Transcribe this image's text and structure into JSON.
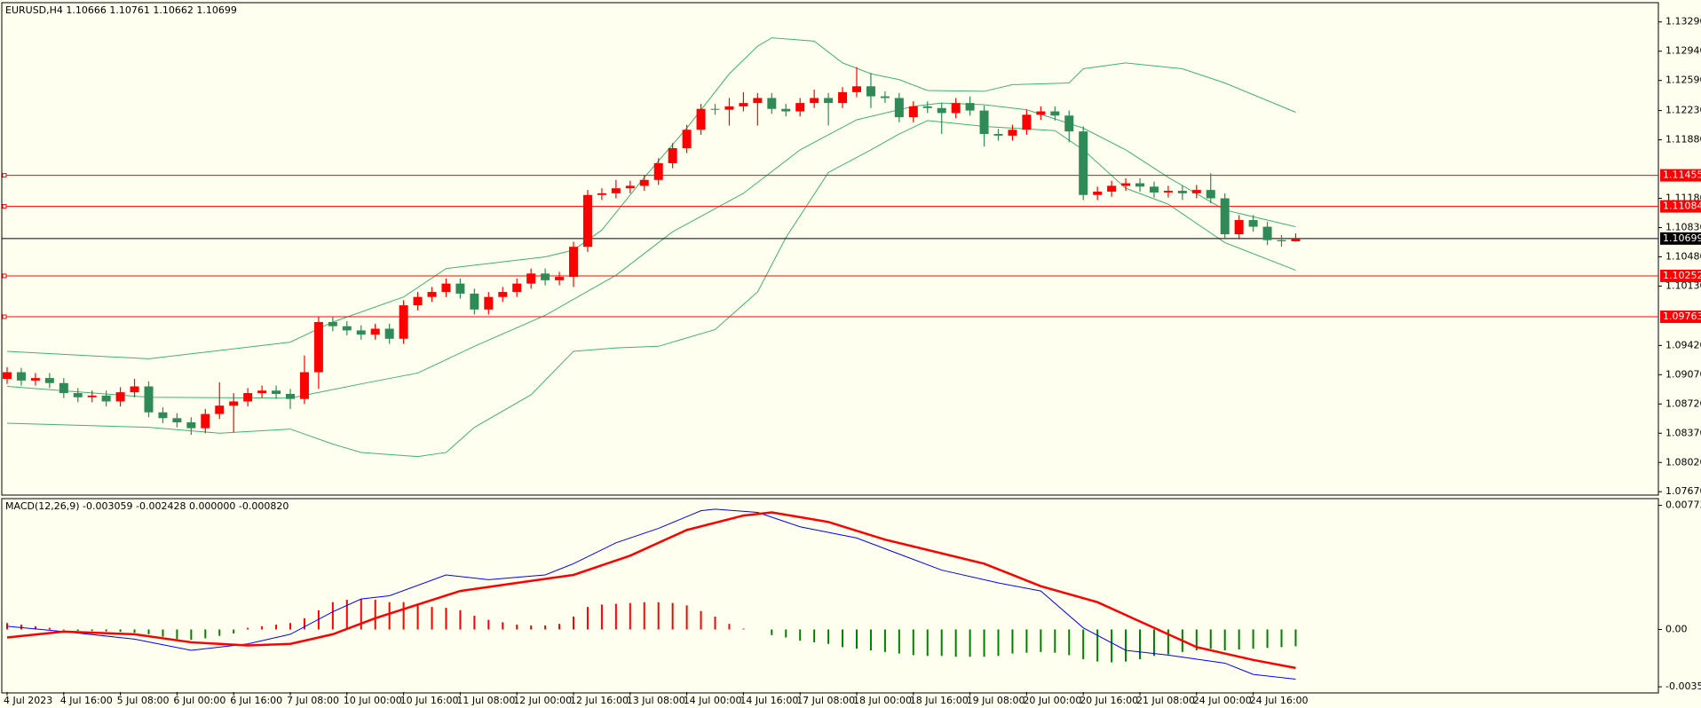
{
  "chart_data": [
    {
      "type": "candlestick",
      "title": "EURUSD,H4  1.10666 1.10761 1.10662 1.10699",
      "categories": [
        "4 Jul 2023",
        null,
        null,
        null,
        "4 Jul 16:00",
        null,
        null,
        null,
        "5 Jul 08:00",
        null,
        null,
        null,
        "6 Jul 00:00",
        null,
        null,
        null,
        "6 Jul 16:00",
        null,
        null,
        null,
        "7 Jul 08:00",
        null,
        null,
        null,
        "10 Jul 00:00",
        null,
        null,
        null,
        "10 Jul 16:00",
        null,
        null,
        null,
        "11 Jul 08:00",
        null,
        null,
        null,
        "12 Jul 00:00",
        null,
        null,
        null,
        "12 Jul 16:00",
        null,
        null,
        null,
        "13 Jul 08:00",
        null,
        null,
        null,
        "14 Jul 00:00",
        null,
        null,
        null,
        "14 Jul 16:00",
        null,
        null,
        null,
        "17 Jul 08:00",
        null,
        null,
        null,
        "18 Jul 00:00",
        null,
        null,
        null,
        "18 Jul 16:00",
        null,
        null,
        null,
        "19 Jul 08:00",
        null,
        null,
        null,
        "20 Jul 00:00",
        null,
        null,
        null,
        "20 Jul 16:00",
        null,
        null,
        null,
        "21 Jul 08:00",
        null,
        null,
        null,
        "24 Jul 00:00",
        null,
        null,
        null,
        "24 Jul 16:00",
        null,
        null,
        null
      ],
      "open": [
        1.0902,
        1.091,
        1.09,
        1.0903,
        1.0897,
        1.0885,
        1.088,
        1.0882,
        1.0875,
        1.0886,
        1.0893,
        1.0862,
        1.0855,
        1.085,
        1.0843,
        1.086,
        1.087,
        1.0875,
        1.0885,
        1.0888,
        1.0884,
        1.0878,
        1.091,
        1.097,
        1.0965,
        1.096,
        1.0955,
        1.0962,
        1.095,
        1.099,
        1.1,
        1.1006,
        1.1016,
        1.1004,
        1.0985,
        1.1,
        1.1006,
        1.1016,
        1.1028,
        1.102,
        1.1024,
        1.106,
        1.1122,
        1.1124,
        1.113,
        1.1133,
        1.114,
        1.116,
        1.1178,
        1.12,
        1.1225,
        1.1224,
        1.1228,
        1.1232,
        1.1238,
        1.1225,
        1.1222,
        1.1232,
        1.1238,
        1.1232,
        1.1245,
        1.1252,
        1.124,
        1.1238,
        1.1215,
        1.1228,
        1.1226,
        1.122,
        1.1232,
        1.1223,
        1.1195,
        1.1193,
        1.12,
        1.1218,
        1.1222,
        1.1217,
        1.1198,
        1.1122,
        1.1126,
        1.1133,
        1.1136,
        1.1132,
        1.1125,
        1.1127,
        1.1124,
        1.1128,
        1.1118,
        1.1075,
        1.1092,
        1.1084,
        1.1068,
        1.10666
      ],
      "high": [
        1.0916,
        1.0915,
        1.0909,
        1.0909,
        1.0903,
        1.0891,
        1.0888,
        1.0888,
        1.0892,
        1.0902,
        1.0899,
        1.0868,
        1.0861,
        1.0856,
        1.0866,
        1.0898,
        1.0885,
        1.0891,
        1.0894,
        1.0894,
        1.089,
        1.093,
        1.0976,
        1.0976,
        1.0971,
        1.0966,
        1.0968,
        1.0968,
        1.0996,
        1.1006,
        1.1012,
        1.1022,
        1.1022,
        1.101,
        1.1006,
        1.1012,
        1.1022,
        1.1034,
        1.1034,
        1.103,
        1.1066,
        1.1128,
        1.113,
        1.114,
        1.1139,
        1.1146,
        1.1166,
        1.1184,
        1.1206,
        1.1231,
        1.1231,
        1.1238,
        1.1245,
        1.1244,
        1.1244,
        1.1231,
        1.1238,
        1.1248,
        1.1244,
        1.1251,
        1.1275,
        1.1268,
        1.1246,
        1.1244,
        1.1234,
        1.1234,
        1.1232,
        1.1238,
        1.124,
        1.1229,
        1.1201,
        1.1206,
        1.1224,
        1.1228,
        1.1228,
        1.1223,
        1.1204,
        1.1132,
        1.1139,
        1.1142,
        1.1142,
        1.1138,
        1.1133,
        1.1133,
        1.1134,
        1.1148,
        1.1124,
        1.1098,
        1.1098,
        1.109,
        1.1074,
        1.10761
      ],
      "low": [
        1.0896,
        1.0894,
        1.0894,
        1.0891,
        1.0879,
        1.0874,
        1.0874,
        1.0869,
        1.0869,
        1.088,
        1.0856,
        1.0849,
        1.0844,
        1.0835,
        1.0837,
        1.0854,
        1.0838,
        1.0869,
        1.0879,
        1.0878,
        1.0866,
        1.0872,
        1.089,
        1.0959,
        1.0954,
        1.0949,
        1.0949,
        1.0944,
        1.0944,
        1.0984,
        1.0994,
        1.1,
        1.0998,
        1.0979,
        1.0979,
        1.0994,
        1.1,
        1.101,
        1.1014,
        1.1014,
        1.1012,
        1.1054,
        1.1116,
        1.1118,
        1.1124,
        1.1127,
        1.1134,
        1.1154,
        1.1172,
        1.1194,
        1.1218,
        1.1205,
        1.1222,
        1.1205,
        1.1219,
        1.1216,
        1.1216,
        1.1226,
        1.1205,
        1.1226,
        1.1239,
        1.1226,
        1.1232,
        1.1209,
        1.1209,
        1.122,
        1.1195,
        1.1214,
        1.1217,
        1.118,
        1.1187,
        1.1187,
        1.1194,
        1.1212,
        1.1211,
        1.1185,
        1.1116,
        1.1116,
        1.112,
        1.1127,
        1.1126,
        1.1119,
        1.1119,
        1.1116,
        1.1118,
        1.1112,
        1.1069,
        1.1069,
        1.1078,
        1.1062,
        1.106,
        1.10662
      ],
      "close": [
        1.091,
        1.09,
        1.0903,
        1.0897,
        1.0885,
        1.088,
        1.0882,
        1.0875,
        1.0886,
        1.0893,
        1.0862,
        1.0855,
        1.085,
        1.0843,
        1.086,
        1.087,
        1.0875,
        1.0885,
        1.0888,
        1.0884,
        1.0878,
        1.091,
        1.097,
        1.0965,
        1.096,
        1.0955,
        1.0962,
        1.095,
        1.099,
        1.1,
        1.1006,
        1.1016,
        1.1004,
        1.0985,
        1.1,
        1.1006,
        1.1016,
        1.1028,
        1.102,
        1.1024,
        1.106,
        1.1122,
        1.1124,
        1.113,
        1.1133,
        1.114,
        1.116,
        1.1178,
        1.12,
        1.1225,
        1.1224,
        1.1228,
        1.1232,
        1.1238,
        1.1225,
        1.1222,
        1.1232,
        1.1238,
        1.1232,
        1.1245,
        1.1252,
        1.124,
        1.1238,
        1.1215,
        1.1228,
        1.1226,
        1.122,
        1.1232,
        1.1223,
        1.1195,
        1.1193,
        1.12,
        1.1218,
        1.1222,
        1.1217,
        1.1198,
        1.1122,
        1.1126,
        1.1133,
        1.1136,
        1.1132,
        1.1125,
        1.1127,
        1.1124,
        1.1128,
        1.1118,
        1.1075,
        1.1092,
        1.1084,
        1.1068,
        1.10666,
        1.10699
      ],
      "up_color": "#ff0000",
      "down_color": "#2e8b57",
      "bands": [
        {
          "color": "#3cb371",
          "x": [
            0,
            10,
            20,
            23,
            28,
            31,
            38,
            40,
            42,
            45,
            48,
            51,
            53,
            54,
            57,
            59,
            61,
            63,
            65,
            69,
            71,
            75,
            76,
            79,
            83,
            86,
            91
          ],
          "values": [
            1.0935,
            1.0926,
            1.0946,
            1.097,
            1.1,
            1.1034,
            1.1048,
            1.1056,
            1.108,
            1.1143,
            1.1202,
            1.1267,
            1.13,
            1.131,
            1.1306,
            1.128,
            1.1267,
            1.126,
            1.1247,
            1.1246,
            1.1254,
            1.1256,
            1.1273,
            1.128,
            1.1273,
            1.1256,
            1.1221
          ]
        },
        {
          "color": "#3cb371",
          "x": [
            0,
            10,
            20,
            25,
            29,
            33,
            38,
            43,
            47,
            52,
            56,
            60,
            64,
            66,
            69,
            72,
            76,
            79,
            82,
            86,
            91
          ],
          "values": [
            1.0893,
            1.088,
            1.0879,
            1.0896,
            1.0909,
            1.0941,
            1.0978,
            1.1026,
            1.1078,
            1.1124,
            1.1176,
            1.1212,
            1.1228,
            1.1232,
            1.123,
            1.1224,
            1.1202,
            1.1176,
            1.1143,
            1.1104,
            1.1084
          ]
        },
        {
          "color": "#3cb371",
          "x": [
            0,
            10,
            15,
            20,
            23,
            25,
            29,
            31,
            33,
            37,
            40,
            43,
            46,
            50,
            53,
            55,
            58,
            61,
            63,
            65,
            69,
            74,
            76,
            79,
            82,
            86,
            91
          ],
          "values": [
            1.0849,
            1.0844,
            1.0837,
            1.0842,
            1.0824,
            1.0814,
            1.0809,
            1.0814,
            1.0844,
            1.0883,
            1.0935,
            1.0939,
            1.0941,
            1.0961,
            1.1006,
            1.1071,
            1.1149,
            1.1176,
            1.1195,
            1.1211,
            1.1204,
            1.1199,
            1.1176,
            1.113,
            1.1111,
            1.1065,
            1.1032
          ]
        }
      ],
      "levels": [
        {
          "value": 1.11455,
          "color": "#ff0000"
        },
        {
          "value": 1.11084,
          "color": "#ff0000"
        },
        {
          "value": 1.10252,
          "color": "#ff0000"
        },
        {
          "value": 1.09763,
          "color": "#ff0000"
        }
      ],
      "current": {
        "value": 1.10699,
        "color": "#000000"
      },
      "ylim": [
        1.0763,
        1.1351
      ],
      "yticks": [
        {
          "value": 1.0767,
          "label": "1.07670"
        },
        {
          "value": 1.0802,
          "label": "1.08020"
        },
        {
          "value": 1.0837,
          "label": "1.08370"
        },
        {
          "value": 1.0872,
          "label": "1.08720"
        },
        {
          "value": 1.0907,
          "label": "1.09070"
        },
        {
          "value": 1.0942,
          "label": "1.09420"
        },
        {
          "value": 1.1013,
          "label": "1.10130"
        },
        {
          "value": 1.1048,
          "label": "1.10480"
        },
        {
          "value": 1.1083,
          "label": "1.10830"
        },
        {
          "value": 1.1118,
          "label": "1.11180"
        },
        {
          "value": 1.1188,
          "label": "1.11880"
        },
        {
          "value": 1.1223,
          "label": "1.12230"
        },
        {
          "value": 1.1259,
          "label": "1.12590"
        },
        {
          "value": 1.1294,
          "label": "1.12940"
        },
        {
          "value": 1.1329,
          "label": "1.13290"
        }
      ]
    },
    {
      "type": "macd",
      "title": "MACD(12,26,9) -0.003059 -0.002428 0.000000 -0.000820",
      "histogram": {
        "up_color": "#ff0000",
        "down_color": "#008000",
        "values": [
          0.0004,
          0.0003,
          0.0002,
          0.0001,
          -5e-05,
          -8e-05,
          -0.0001,
          -0.00012,
          -0.00015,
          -0.0002,
          -0.0003,
          -0.00045,
          -0.0006,
          -0.00065,
          -0.00055,
          -0.0004,
          -0.00025,
          0.0001,
          0.0002,
          0.0003,
          0.0004,
          0.0007,
          0.0012,
          0.0017,
          0.00185,
          0.0019,
          0.00185,
          0.0017,
          0.0017,
          0.0015,
          0.0014,
          0.00135,
          0.0012,
          0.00085,
          0.0006,
          0.00045,
          0.0003,
          0.00025,
          0.00025,
          0.00035,
          0.0008,
          0.0014,
          0.00155,
          0.0016,
          0.00165,
          0.0017,
          0.0017,
          0.00165,
          0.0015,
          0.00115,
          0.0008,
          0.00035,
          5e-05,
          0,
          -0.00035,
          -0.0005,
          -0.0007,
          -0.0008,
          -0.0009,
          -0.0011,
          -0.0012,
          -0.0013,
          -0.0014,
          -0.0015,
          -0.0016,
          -0.00165,
          -0.00165,
          -0.0017,
          -0.0017,
          -0.0017,
          -0.00165,
          -0.0015,
          -0.00145,
          -0.0014,
          -0.00145,
          -0.0016,
          -0.00185,
          -0.002,
          -0.00205,
          -0.002,
          -0.00185,
          -0.00165,
          -0.00155,
          -0.0014,
          -0.0013,
          -0.0012,
          -0.0013,
          -0.00125,
          -0.0012,
          -0.00115,
          -0.0011,
          -0.00105
        ]
      },
      "series": [
        {
          "color": "#0000ff",
          "width": 1,
          "x": [
            0,
            4,
            9,
            13,
            17,
            20,
            23,
            25,
            27,
            31,
            34,
            38,
            40,
            43,
            46,
            49,
            50,
            53,
            56,
            60,
            63,
            66,
            70,
            73,
            76,
            79,
            82,
            86,
            88,
            91
          ],
          "values": [
            0.0002,
            -0.00013,
            -0.0006,
            -0.0013,
            -0.0009,
            -0.0003,
            0.0011,
            0.0019,
            0.0021,
            0.0034,
            0.0031,
            0.0034,
            0.0041,
            0.0054,
            0.0063,
            0.0074,
            0.0075,
            0.0073,
            0.0064,
            0.0057,
            0.0047,
            0.0037,
            0.0029,
            0.0024,
            0.0001,
            -0.0013,
            -0.0016,
            -0.0021,
            -0.0028,
            -0.0031
          ]
        },
        {
          "color": "#ff0000",
          "width": 2.5,
          "x": [
            0,
            4,
            9,
            13,
            17,
            20,
            23,
            26,
            32,
            36,
            40,
            44,
            48,
            52,
            54,
            58,
            62,
            69,
            73,
            77,
            81,
            84,
            88,
            91
          ],
          "values": [
            -0.0005,
            -0.00013,
            -0.0003,
            -0.0008,
            -0.001,
            -0.0009,
            -0.0003,
            0.0007,
            0.0024,
            0.0029,
            0.0034,
            0.0046,
            0.0062,
            0.0071,
            0.0073,
            0.0067,
            0.0056,
            0.0041,
            0.0027,
            0.0017,
            0.0001,
            -0.0011,
            -0.0019,
            -0.0024
          ]
        }
      ],
      "ylim": [
        -0.0039,
        0.0081
      ],
      "yticks": [
        0.007734,
        {
          "value": 0,
          "label": "0.00"
        },
        -0.003573
      ]
    }
  ]
}
